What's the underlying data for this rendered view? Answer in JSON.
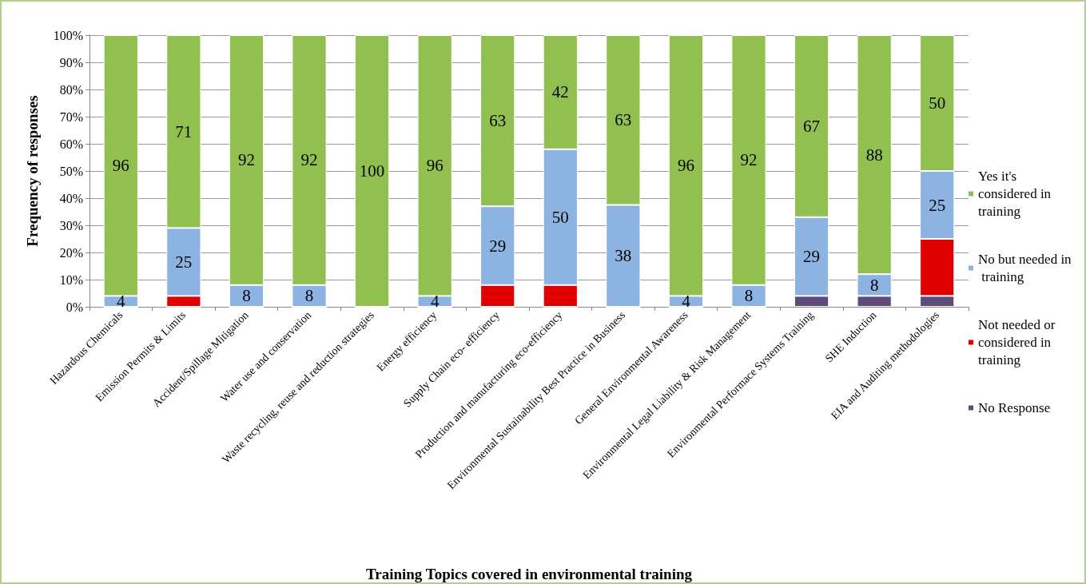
{
  "chart_data": {
    "type": "bar",
    "stacked": true,
    "xlabel": "Training Topics covered in environmental training",
    "ylabel": "Frequency of responses",
    "categories": [
      "Hazardous Chemicals",
      "Emission Permits & Limits",
      "Accident/Spillage Mitigation",
      "Water use and conservation",
      "Waste recycling, reuse and reduction strategies",
      "Energy efficiency",
      "Supply Chain eco- efficiency",
      "Production and manufacturing eco-efficiency",
      "Environmental Sustainability Best Practice in Business",
      "General Environmental Awareness",
      "Environmental Legal Liability & Risk Management",
      "Environmental Performace Systems Training",
      "SHE Induction",
      "EIA and Auditing methodologies"
    ],
    "series": [
      {
        "name": "No Response",
        "color": "#604a7b",
        "values": [
          0,
          0,
          0,
          0,
          0,
          0,
          0,
          0,
          0,
          0,
          0,
          4,
          4,
          4
        ]
      },
      {
        "name": "Not needed or considered in training",
        "color": "#e00000",
        "values": [
          0,
          4,
          0,
          0,
          0,
          0,
          8,
          8,
          0,
          0,
          0,
          0,
          0,
          21
        ]
      },
      {
        "name": "No but needed in training",
        "color": "#8db3e2",
        "values": [
          4,
          25,
          8,
          8,
          0,
          4,
          29,
          50,
          37.5,
          4,
          8,
          29,
          8,
          25
        ],
        "value_labels": [
          "4",
          "25",
          "8",
          "8",
          null,
          "4",
          "29",
          "50",
          "38",
          "4",
          "8",
          "29",
          "8",
          "25"
        ]
      },
      {
        "name": "Yes it's considered in training",
        "color": "#92c050",
        "values": [
          96,
          71,
          92,
          92,
          100,
          96,
          63,
          42,
          62.5,
          96,
          92,
          67,
          88,
          50
        ],
        "value_labels": [
          "96",
          "71",
          "92",
          "92",
          "100",
          "96",
          "63",
          "42",
          "63",
          "96",
          "92",
          "67",
          "88",
          "50"
        ]
      }
    ],
    "ylim": [
      0,
      100
    ],
    "yticks": [
      {
        "value": 0,
        "label": "0%"
      },
      {
        "value": 10,
        "label": "10%"
      },
      {
        "value": 20,
        "label": "20%"
      },
      {
        "value": 30,
        "label": "30%"
      },
      {
        "value": 40,
        "label": "40%"
      },
      {
        "value": 50,
        "label": "50%"
      },
      {
        "value": 60,
        "label": "60%"
      },
      {
        "value": 70,
        "label": "70%"
      },
      {
        "value": 80,
        "label": "80%"
      },
      {
        "value": 90,
        "label": "90%"
      },
      {
        "value": 100,
        "label": "100%"
      }
    ],
    "grid": "y",
    "legend": "right"
  }
}
